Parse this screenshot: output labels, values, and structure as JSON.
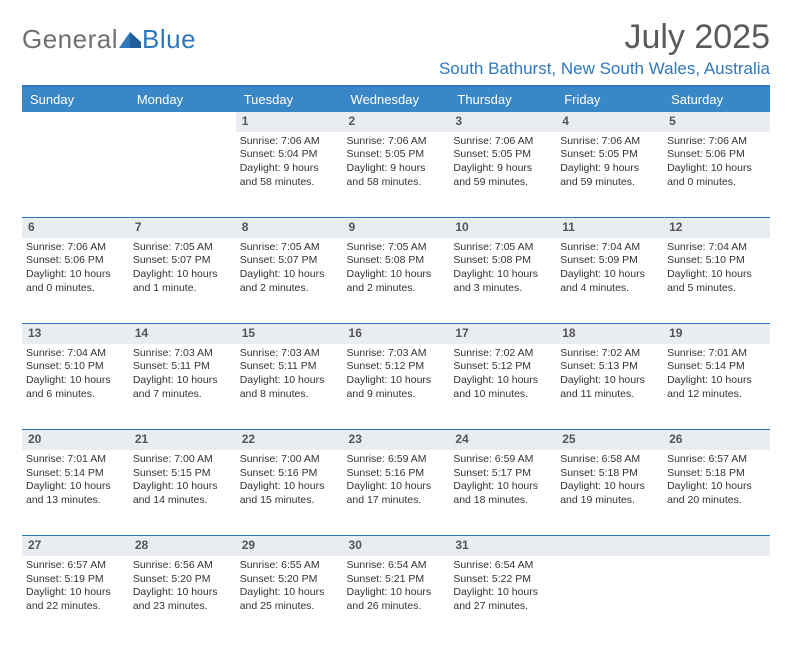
{
  "brand": {
    "part1": "General",
    "part2": "Blue",
    "text_color_1": "#6f6f6f",
    "text_color_2": "#2f77bd",
    "mark_color": "#2f77bd"
  },
  "title": "July 2025",
  "location": "South Bathurst, New South Wales, Australia",
  "colors": {
    "header_bg": "#3a87c8",
    "header_text": "#ffffff",
    "rule": "#2f77bd",
    "daynum_bg": "#e9edf1",
    "daynum_text": "#555555",
    "body_text": "#333333",
    "background": "#ffffff"
  },
  "weekdays": [
    "Sunday",
    "Monday",
    "Tuesday",
    "Wednesday",
    "Thursday",
    "Friday",
    "Saturday"
  ],
  "weeks": [
    [
      null,
      null,
      {
        "d": "1",
        "lines": [
          "Sunrise: 7:06 AM",
          "Sunset: 5:04 PM",
          "Daylight: 9 hours",
          "and 58 minutes."
        ]
      },
      {
        "d": "2",
        "lines": [
          "Sunrise: 7:06 AM",
          "Sunset: 5:05 PM",
          "Daylight: 9 hours",
          "and 58 minutes."
        ]
      },
      {
        "d": "3",
        "lines": [
          "Sunrise: 7:06 AM",
          "Sunset: 5:05 PM",
          "Daylight: 9 hours",
          "and 59 minutes."
        ]
      },
      {
        "d": "4",
        "lines": [
          "Sunrise: 7:06 AM",
          "Sunset: 5:05 PM",
          "Daylight: 9 hours",
          "and 59 minutes."
        ]
      },
      {
        "d": "5",
        "lines": [
          "Sunrise: 7:06 AM",
          "Sunset: 5:06 PM",
          "Daylight: 10 hours",
          "and 0 minutes."
        ]
      }
    ],
    [
      {
        "d": "6",
        "lines": [
          "Sunrise: 7:06 AM",
          "Sunset: 5:06 PM",
          "Daylight: 10 hours",
          "and 0 minutes."
        ]
      },
      {
        "d": "7",
        "lines": [
          "Sunrise: 7:05 AM",
          "Sunset: 5:07 PM",
          "Daylight: 10 hours",
          "and 1 minute."
        ]
      },
      {
        "d": "8",
        "lines": [
          "Sunrise: 7:05 AM",
          "Sunset: 5:07 PM",
          "Daylight: 10 hours",
          "and 2 minutes."
        ]
      },
      {
        "d": "9",
        "lines": [
          "Sunrise: 7:05 AM",
          "Sunset: 5:08 PM",
          "Daylight: 10 hours",
          "and 2 minutes."
        ]
      },
      {
        "d": "10",
        "lines": [
          "Sunrise: 7:05 AM",
          "Sunset: 5:08 PM",
          "Daylight: 10 hours",
          "and 3 minutes."
        ]
      },
      {
        "d": "11",
        "lines": [
          "Sunrise: 7:04 AM",
          "Sunset: 5:09 PM",
          "Daylight: 10 hours",
          "and 4 minutes."
        ]
      },
      {
        "d": "12",
        "lines": [
          "Sunrise: 7:04 AM",
          "Sunset: 5:10 PM",
          "Daylight: 10 hours",
          "and 5 minutes."
        ]
      }
    ],
    [
      {
        "d": "13",
        "lines": [
          "Sunrise: 7:04 AM",
          "Sunset: 5:10 PM",
          "Daylight: 10 hours",
          "and 6 minutes."
        ]
      },
      {
        "d": "14",
        "lines": [
          "Sunrise: 7:03 AM",
          "Sunset: 5:11 PM",
          "Daylight: 10 hours",
          "and 7 minutes."
        ]
      },
      {
        "d": "15",
        "lines": [
          "Sunrise: 7:03 AM",
          "Sunset: 5:11 PM",
          "Daylight: 10 hours",
          "and 8 minutes."
        ]
      },
      {
        "d": "16",
        "lines": [
          "Sunrise: 7:03 AM",
          "Sunset: 5:12 PM",
          "Daylight: 10 hours",
          "and 9 minutes."
        ]
      },
      {
        "d": "17",
        "lines": [
          "Sunrise: 7:02 AM",
          "Sunset: 5:12 PM",
          "Daylight: 10 hours",
          "and 10 minutes."
        ]
      },
      {
        "d": "18",
        "lines": [
          "Sunrise: 7:02 AM",
          "Sunset: 5:13 PM",
          "Daylight: 10 hours",
          "and 11 minutes."
        ]
      },
      {
        "d": "19",
        "lines": [
          "Sunrise: 7:01 AM",
          "Sunset: 5:14 PM",
          "Daylight: 10 hours",
          "and 12 minutes."
        ]
      }
    ],
    [
      {
        "d": "20",
        "lines": [
          "Sunrise: 7:01 AM",
          "Sunset: 5:14 PM",
          "Daylight: 10 hours",
          "and 13 minutes."
        ]
      },
      {
        "d": "21",
        "lines": [
          "Sunrise: 7:00 AM",
          "Sunset: 5:15 PM",
          "Daylight: 10 hours",
          "and 14 minutes."
        ]
      },
      {
        "d": "22",
        "lines": [
          "Sunrise: 7:00 AM",
          "Sunset: 5:16 PM",
          "Daylight: 10 hours",
          "and 15 minutes."
        ]
      },
      {
        "d": "23",
        "lines": [
          "Sunrise: 6:59 AM",
          "Sunset: 5:16 PM",
          "Daylight: 10 hours",
          "and 17 minutes."
        ]
      },
      {
        "d": "24",
        "lines": [
          "Sunrise: 6:59 AM",
          "Sunset: 5:17 PM",
          "Daylight: 10 hours",
          "and 18 minutes."
        ]
      },
      {
        "d": "25",
        "lines": [
          "Sunrise: 6:58 AM",
          "Sunset: 5:18 PM",
          "Daylight: 10 hours",
          "and 19 minutes."
        ]
      },
      {
        "d": "26",
        "lines": [
          "Sunrise: 6:57 AM",
          "Sunset: 5:18 PM",
          "Daylight: 10 hours",
          "and 20 minutes."
        ]
      }
    ],
    [
      {
        "d": "27",
        "lines": [
          "Sunrise: 6:57 AM",
          "Sunset: 5:19 PM",
          "Daylight: 10 hours",
          "and 22 minutes."
        ]
      },
      {
        "d": "28",
        "lines": [
          "Sunrise: 6:56 AM",
          "Sunset: 5:20 PM",
          "Daylight: 10 hours",
          "and 23 minutes."
        ]
      },
      {
        "d": "29",
        "lines": [
          "Sunrise: 6:55 AM",
          "Sunset: 5:20 PM",
          "Daylight: 10 hours",
          "and 25 minutes."
        ]
      },
      {
        "d": "30",
        "lines": [
          "Sunrise: 6:54 AM",
          "Sunset: 5:21 PM",
          "Daylight: 10 hours",
          "and 26 minutes."
        ]
      },
      {
        "d": "31",
        "lines": [
          "Sunrise: 6:54 AM",
          "Sunset: 5:22 PM",
          "Daylight: 10 hours",
          "and 27 minutes."
        ]
      },
      null,
      null
    ]
  ]
}
